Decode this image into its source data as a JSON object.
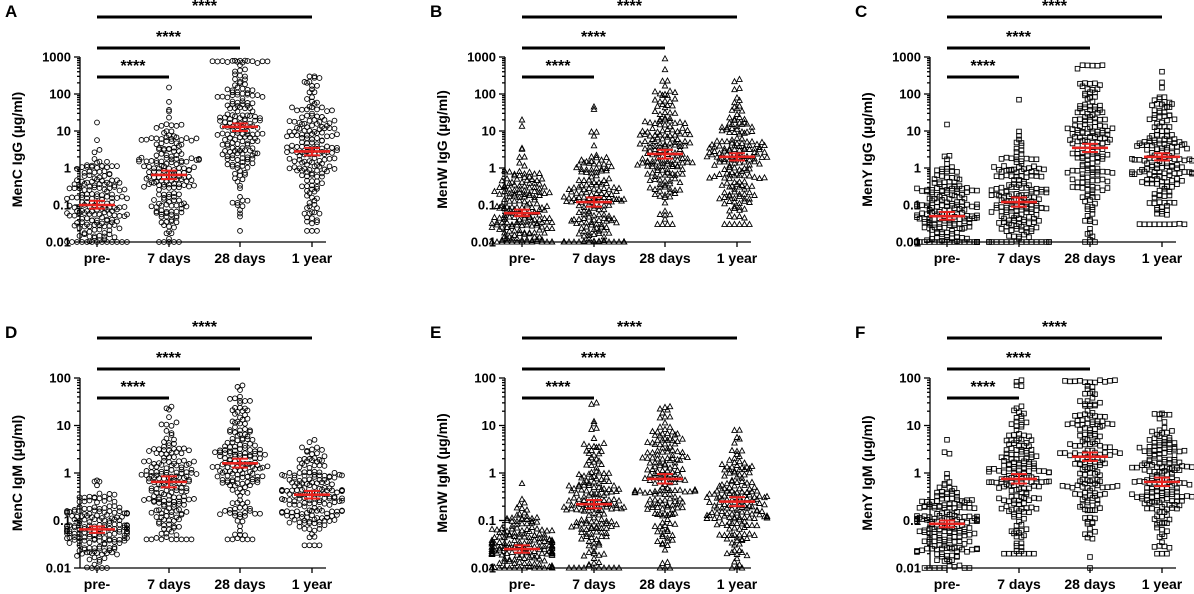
{
  "chart_data": [
    {
      "type": "scatter",
      "panel": "A",
      "ylabel": "MenC IgG (µg/ml)",
      "yscale": "log",
      "ylim": [
        0.01,
        1000
      ],
      "yticks": [
        "0.01",
        "0.1",
        "1",
        "10",
        "100",
        "1000"
      ],
      "categories": [
        "pre-",
        "7 days",
        "28 days",
        "1 year"
      ],
      "marker": "circle",
      "series": [
        {
          "name": "pre-",
          "gmt": 0.1,
          "ci": [
            0.08,
            0.13
          ],
          "min": 0.01,
          "max": 17,
          "n": 180
        },
        {
          "name": "7 days",
          "gmt": 0.65,
          "ci": [
            0.5,
            0.85
          ],
          "min": 0.01,
          "max": 150,
          "n": 180
        },
        {
          "name": "28 days",
          "gmt": 13,
          "ci": [
            10,
            16
          ],
          "min": 0.02,
          "max": 800,
          "n": 180
        },
        {
          "name": "1 year",
          "gmt": 2.8,
          "ci": [
            2.2,
            3.5
          ],
          "min": 0.02,
          "max": 300,
          "n": 180
        }
      ],
      "significance": [
        {
          "from": "pre-",
          "to": "7 days",
          "label": "****"
        },
        {
          "from": "pre-",
          "to": "28 days",
          "label": "****"
        },
        {
          "from": "pre-",
          "to": "1 year",
          "label": "****"
        }
      ]
    },
    {
      "type": "scatter",
      "panel": "B",
      "ylabel": "MenW IgG (µg/ml)",
      "yscale": "log",
      "ylim": [
        0.01,
        1000
      ],
      "yticks": [
        "0.01",
        "0.1",
        "1",
        "10",
        "100",
        "1000"
      ],
      "categories": [
        "pre-",
        "7 days",
        "28 days",
        "1 year"
      ],
      "marker": "triangle",
      "series": [
        {
          "name": "pre-",
          "gmt": 0.06,
          "ci": [
            0.05,
            0.075
          ],
          "min": 0.01,
          "max": 20,
          "n": 180
        },
        {
          "name": "7 days",
          "gmt": 0.12,
          "ci": [
            0.09,
            0.16
          ],
          "min": 0.01,
          "max": 45,
          "n": 180
        },
        {
          "name": "28 days",
          "gmt": 2.4,
          "ci": [
            1.8,
            3.1
          ],
          "min": 0.03,
          "max": 900,
          "n": 180
        },
        {
          "name": "1 year",
          "gmt": 2,
          "ci": [
            1.6,
            2.5
          ],
          "min": 0.03,
          "max": 250,
          "n": 180
        }
      ],
      "significance": [
        {
          "from": "pre-",
          "to": "7 days",
          "label": "****"
        },
        {
          "from": "pre-",
          "to": "28 days",
          "label": "****"
        },
        {
          "from": "pre-",
          "to": "1 year",
          "label": "****"
        }
      ]
    },
    {
      "type": "scatter",
      "panel": "C",
      "ylabel": "MenY IgG (µg/ml)",
      "yscale": "log",
      "ylim": [
        0.01,
        1000
      ],
      "yticks": [
        "0.01",
        "0.1",
        "1",
        "10",
        "100",
        "1000"
      ],
      "categories": [
        "pre-",
        "7 days",
        "28 days",
        "1 year"
      ],
      "marker": "square",
      "series": [
        {
          "name": "pre-",
          "gmt": 0.05,
          "ci": [
            0.04,
            0.065
          ],
          "min": 0.01,
          "max": 15,
          "n": 180
        },
        {
          "name": "7 days",
          "gmt": 0.12,
          "ci": [
            0.09,
            0.16
          ],
          "min": 0.01,
          "max": 70,
          "n": 180
        },
        {
          "name": "28 days",
          "gmt": 3.5,
          "ci": [
            2.7,
            4.5
          ],
          "min": 0.01,
          "max": 600,
          "n": 180
        },
        {
          "name": "1 year",
          "gmt": 2,
          "ci": [
            1.6,
            2.5
          ],
          "min": 0.03,
          "max": 400,
          "n": 180
        }
      ],
      "significance": [
        {
          "from": "pre-",
          "to": "7 days",
          "label": "****"
        },
        {
          "from": "pre-",
          "to": "28 days",
          "label": "****"
        },
        {
          "from": "pre-",
          "to": "1 year",
          "label": "****"
        }
      ]
    },
    {
      "type": "scatter",
      "panel": "D",
      "ylabel": "MenC IgM (µg/ml)",
      "yscale": "log",
      "ylim": [
        0.01,
        100
      ],
      "yticks": [
        "0.01",
        "0.1",
        "1",
        "10",
        "100"
      ],
      "categories": [
        "pre-",
        "7 days",
        "28 days",
        "1 year"
      ],
      "marker": "circle",
      "series": [
        {
          "name": "pre-",
          "gmt": 0.065,
          "ci": [
            0.055,
            0.075
          ],
          "min": 0.01,
          "max": 0.7,
          "n": 180
        },
        {
          "name": "7 days",
          "gmt": 0.65,
          "ci": [
            0.5,
            0.85
          ],
          "min": 0.04,
          "max": 25,
          "n": 180
        },
        {
          "name": "28 days",
          "gmt": 1.6,
          "ci": [
            1.3,
            2.0
          ],
          "min": 0.04,
          "max": 70,
          "n": 180
        },
        {
          "name": "1 year",
          "gmt": 0.35,
          "ci": [
            0.29,
            0.42
          ],
          "min": 0.03,
          "max": 5,
          "n": 180
        }
      ],
      "significance": [
        {
          "from": "pre-",
          "to": "7 days",
          "label": "****"
        },
        {
          "from": "pre-",
          "to": "28 days",
          "label": "****"
        },
        {
          "from": "pre-",
          "to": "1 year",
          "label": "****"
        }
      ]
    },
    {
      "type": "scatter",
      "panel": "E",
      "ylabel": "MenW IgM (µg/ml)",
      "yscale": "log",
      "ylim": [
        0.01,
        100
      ],
      "yticks": [
        "0.01",
        "0.1",
        "1",
        "10",
        "100"
      ],
      "categories": [
        "pre-",
        "7 days",
        "28 days",
        "1 year"
      ],
      "marker": "triangle",
      "series": [
        {
          "name": "pre-",
          "gmt": 0.025,
          "ci": [
            0.021,
            0.03
          ],
          "min": 0.01,
          "max": 0.6,
          "n": 180
        },
        {
          "name": "7 days",
          "gmt": 0.22,
          "ci": [
            0.18,
            0.27
          ],
          "min": 0.01,
          "max": 30,
          "n": 180
        },
        {
          "name": "28 days",
          "gmt": 0.75,
          "ci": [
            0.6,
            0.95
          ],
          "min": 0.01,
          "max": 25,
          "n": 180
        },
        {
          "name": "1 year",
          "gmt": 0.25,
          "ci": [
            0.2,
            0.31
          ],
          "min": 0.01,
          "max": 8,
          "n": 180
        }
      ],
      "significance": [
        {
          "from": "pre-",
          "to": "7 days",
          "label": "****"
        },
        {
          "from": "pre-",
          "to": "28 days",
          "label": "****"
        },
        {
          "from": "pre-",
          "to": "1 year",
          "label": "****"
        }
      ]
    },
    {
      "type": "scatter",
      "panel": "F",
      "ylabel": "MenY IgM (µg/ml)",
      "yscale": "log",
      "ylim": [
        0.01,
        100
      ],
      "yticks": [
        "0.01",
        "0.1",
        "1",
        "10",
        "100"
      ],
      "categories": [
        "pre-",
        "7 days",
        "28 days",
        "1 year"
      ],
      "marker": "square",
      "series": [
        {
          "name": "pre-",
          "gmt": 0.085,
          "ci": [
            0.072,
            0.1
          ],
          "min": 0.01,
          "max": 5,
          "n": 180
        },
        {
          "name": "7 days",
          "gmt": 0.75,
          "ci": [
            0.6,
            0.95
          ],
          "min": 0.02,
          "max": 90,
          "n": 180
        },
        {
          "name": "28 days",
          "gmt": 2.2,
          "ci": [
            1.8,
            2.7
          ],
          "min": 0.01,
          "max": 90,
          "n": 180
        },
        {
          "name": "1 year",
          "gmt": 0.65,
          "ci": [
            0.53,
            0.8
          ],
          "min": 0.02,
          "max": 18,
          "n": 180
        }
      ],
      "significance": [
        {
          "from": "pre-",
          "to": "7 days",
          "label": "****"
        },
        {
          "from": "pre-",
          "to": "28 days",
          "label": "****"
        },
        {
          "from": "pre-",
          "to": "1 year",
          "label": "****"
        }
      ]
    }
  ]
}
